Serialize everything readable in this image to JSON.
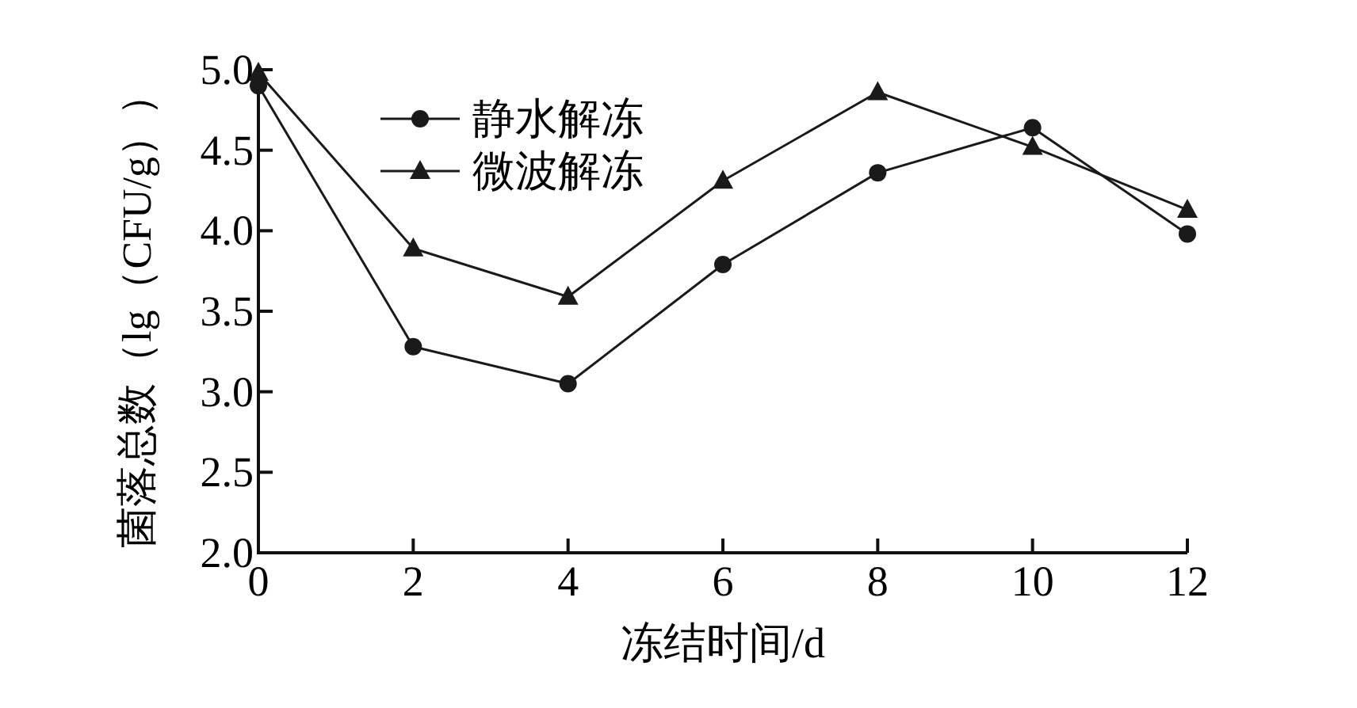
{
  "chart_data": {
    "type": "line",
    "xlabel": "冻结时间/d",
    "ylabel": "菌落总数（lg（CFU/g））",
    "x": [
      0,
      2,
      4,
      6,
      8,
      10,
      12
    ],
    "series": [
      {
        "name": "静水解冻",
        "color": "#1a1a1a",
        "marker": "circle",
        "values": [
          4.9,
          3.28,
          3.05,
          3.79,
          4.36,
          4.64,
          3.98
        ]
      },
      {
        "name": "微波解冻",
        "color": "#1a1a1a",
        "marker": "triangle",
        "values": [
          4.98,
          3.89,
          3.59,
          4.31,
          4.86,
          4.52,
          4.13
        ]
      }
    ],
    "xlim": [
      0,
      12
    ],
    "xticks": [
      0,
      2,
      4,
      6,
      8,
      10,
      12
    ],
    "ylim": [
      2.0,
      5.0
    ],
    "yticks": [
      {
        "value": 2.0,
        "label": "2.0"
      },
      {
        "value": 2.5,
        "label": "2.5"
      },
      {
        "value": 3.0,
        "label": "3.0"
      },
      {
        "value": 3.5,
        "label": "3.5"
      },
      {
        "value": 4.0,
        "label": "4.0"
      },
      {
        "value": 4.5,
        "label": "4.5"
      },
      {
        "value": 5.0,
        "label": "5.0"
      }
    ],
    "grid": false,
    "legend": "top left",
    "line_style": "solid"
  }
}
